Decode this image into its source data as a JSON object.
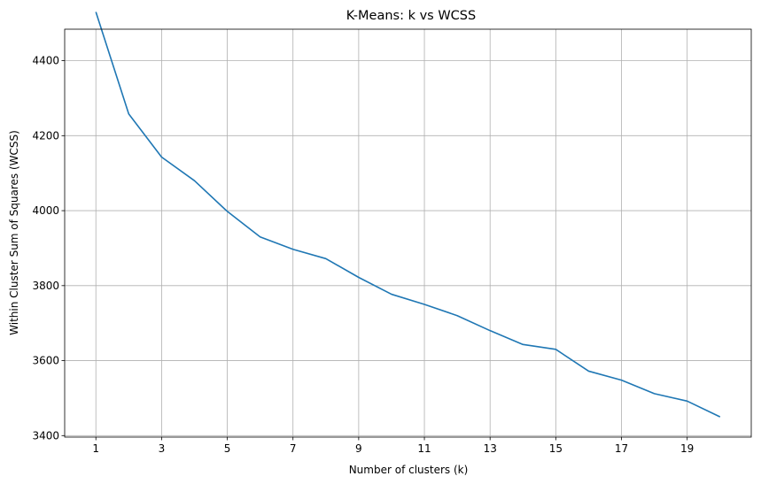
{
  "chart_data": {
    "type": "line",
    "title": "K-Means: k vs WCSS",
    "xlabel": "Number of clusters (k)",
    "ylabel": "Within Cluster Sum of Squares (WCSS)",
    "x": [
      1,
      2,
      3,
      4,
      5,
      6,
      7,
      8,
      9,
      10,
      11,
      12,
      13,
      14,
      15,
      16,
      17,
      18,
      19,
      20
    ],
    "series": [
      {
        "values": [
          4530,
          4258,
          4143,
          4080,
          3998,
          3930,
          3897,
          3872,
          3822,
          3777,
          3750,
          3720,
          3680,
          3643,
          3630,
          3572,
          3548,
          3512,
          3492,
          3450
        ]
      }
    ],
    "xticks": [
      1,
      3,
      5,
      7,
      9,
      11,
      13,
      15,
      17,
      19
    ],
    "yticks": [
      3400,
      3600,
      3800,
      4000,
      4200,
      4400
    ],
    "xlim": [
      0.05,
      20.95
    ],
    "ylim": [
      3396,
      4484
    ],
    "grid": true,
    "line_color": "#1f77b4"
  }
}
